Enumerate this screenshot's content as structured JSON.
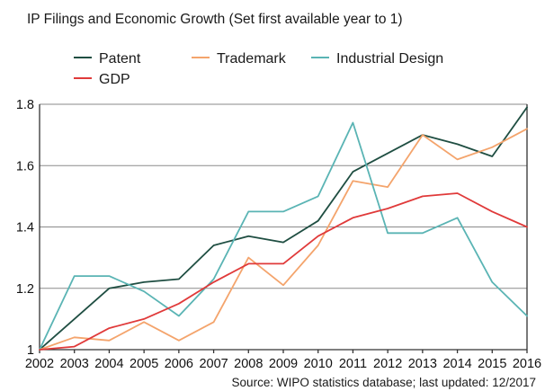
{
  "chart_data": {
    "type": "line",
    "title": "IP Filings and Economic Growth (Set first available year to 1)",
    "source": "Source: WIPO statistics database; last updated: 12/2017",
    "x": [
      "2002",
      "2003",
      "2004",
      "2005",
      "2006",
      "2007",
      "2008",
      "2009",
      "2010",
      "2011",
      "2012",
      "2013",
      "2014",
      "2015",
      "2016"
    ],
    "ylim": [
      1,
      1.8
    ],
    "yticks": [
      1,
      1.2,
      1.4,
      1.6,
      1.8
    ],
    "ytick_labels": [
      "1",
      "1.2",
      "1.4",
      "1.6",
      "1.8"
    ],
    "grid": true,
    "legend_position": "top-left",
    "series": [
      {
        "name": "Patent",
        "color": "#1f4e42",
        "values": [
          1.0,
          1.1,
          1.2,
          1.22,
          1.23,
          1.34,
          1.37,
          1.35,
          1.42,
          1.58,
          1.64,
          1.7,
          1.67,
          1.63,
          1.79
        ]
      },
      {
        "name": "Trademark",
        "color": "#f4a46c",
        "values": [
          1.0,
          1.04,
          1.03,
          1.09,
          1.03,
          1.09,
          1.3,
          1.21,
          1.34,
          1.55,
          1.53,
          1.7,
          1.62,
          1.66,
          1.72
        ]
      },
      {
        "name": "Industrial Design",
        "color": "#5ab4b4",
        "values": [
          1.0,
          1.24,
          1.24,
          1.19,
          1.11,
          1.23,
          1.45,
          1.45,
          1.5,
          1.74,
          1.38,
          1.38,
          1.43,
          1.22,
          1.11
        ]
      },
      {
        "name": "GDP",
        "color": "#e03a3a",
        "values": [
          1.0,
          1.01,
          1.07,
          1.1,
          1.15,
          1.22,
          1.28,
          1.28,
          1.37,
          1.43,
          1.46,
          1.5,
          1.51,
          1.45,
          1.4
        ]
      }
    ]
  }
}
